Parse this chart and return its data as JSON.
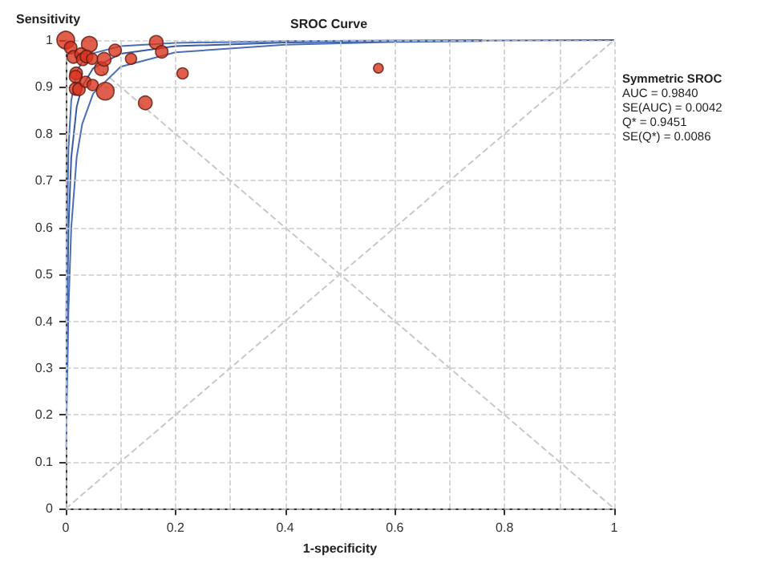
{
  "chart_data": {
    "type": "bubble",
    "title": "SROC Curve",
    "xlabel": "1-specificity",
    "ylabel": "Sensitivity",
    "xlim": [
      0,
      1
    ],
    "ylim": [
      0,
      1
    ],
    "xticks": [
      0,
      {
        "value": 0.1,
        "label": null
      },
      0.2,
      {
        "value": 0.3,
        "label": null
      },
      0.4,
      {
        "value": 0.5,
        "label": null
      },
      0.6,
      {
        "value": 0.7,
        "label": null
      },
      0.8,
      {
        "value": 0.9,
        "label": null
      },
      1
    ],
    "yticks": [
      0,
      0.1,
      0.2,
      0.3,
      0.4,
      0.5,
      0.6,
      0.7,
      0.8,
      0.9,
      1
    ],
    "grid": true,
    "annotations": [
      "Symmetric SROC",
      "AUC = 0.9840",
      "SE(AUC) = 0.0042",
      "Q* = 0.9451",
      "SE(Q*) = 0.0086"
    ],
    "series": [
      {
        "type": "line",
        "color": "#c8c8c8",
        "line_style": "dashed",
        "marker": "none",
        "x": [
          0,
          1
        ],
        "values": [
          0,
          1
        ]
      },
      {
        "type": "line",
        "color": "#c8c8c8",
        "line_style": "dashed",
        "marker": "none",
        "x": [
          0,
          1
        ],
        "values": [
          1,
          0
        ]
      },
      {
        "type": "line",
        "color": "#4a6fb5",
        "line_style": "solid",
        "marker": "none",
        "x": [
          0.001,
          0.002,
          0.005,
          0.01,
          0.02,
          0.03,
          0.05,
          0.1,
          0.2,
          0.4,
          0.6,
          0.76
        ],
        "values": [
          0.129,
          0.229,
          0.427,
          0.599,
          0.751,
          0.821,
          0.886,
          0.943,
          0.974,
          0.99,
          0.996,
          0.998
        ]
      },
      {
        "type": "line",
        "color": "#3a5aa0",
        "line_style": "solid",
        "marker": "none",
        "x": [
          0.001,
          0.002,
          0.005,
          0.01,
          0.02,
          0.03,
          0.05,
          0.1,
          0.2,
          0.4,
          0.6,
          0.8,
          1
        ],
        "values": [
          0.228,
          0.372,
          0.598,
          0.749,
          0.858,
          0.901,
          0.94,
          0.971,
          0.987,
          0.995,
          0.998,
          0.999,
          1
        ]
      },
      {
        "type": "line",
        "color": "#4a6fb5",
        "line_style": "solid",
        "marker": "none",
        "x": [
          0.001,
          0.002,
          0.005,
          0.01,
          0.02,
          0.03,
          0.05,
          0.1,
          0.2,
          0.4,
          0.6,
          0.76
        ],
        "values": [
          0.4,
          0.572,
          0.77,
          0.871,
          0.932,
          0.954,
          0.972,
          0.987,
          0.994,
          0.998,
          0.999,
          1
        ]
      },
      {
        "type": "bubble",
        "color": "#d9341f",
        "marker": "circle",
        "x": [
          0.0,
          0.009,
          0.014,
          0.043,
          0.028,
          0.031,
          0.038,
          0.048,
          0.019,
          0.018,
          0.018,
          0.024,
          0.036,
          0.049,
          0.072,
          0.065,
          0.07,
          0.09,
          0.119,
          0.165,
          0.175,
          0.213,
          0.145,
          0.57
        ],
        "values": [
          1.0,
          0.984,
          0.964,
          0.991,
          0.97,
          0.959,
          0.965,
          0.96,
          0.929,
          0.922,
          0.896,
          0.895,
          0.911,
          0.904,
          0.891,
          0.939,
          0.959,
          0.978,
          0.96,
          0.995,
          0.975,
          0.929,
          0.866,
          0.94
        ],
        "sizes": [
          1,
          0.5,
          0.5,
          0.8,
          0.5,
          0.5,
          0.5,
          0.4,
          0.5,
          0.5,
          0.5,
          0.5,
          0.4,
          0.4,
          1,
          0.6,
          0.6,
          0.5,
          0.4,
          0.6,
          0.5,
          0.4,
          0.6,
          0.3
        ]
      }
    ]
  }
}
